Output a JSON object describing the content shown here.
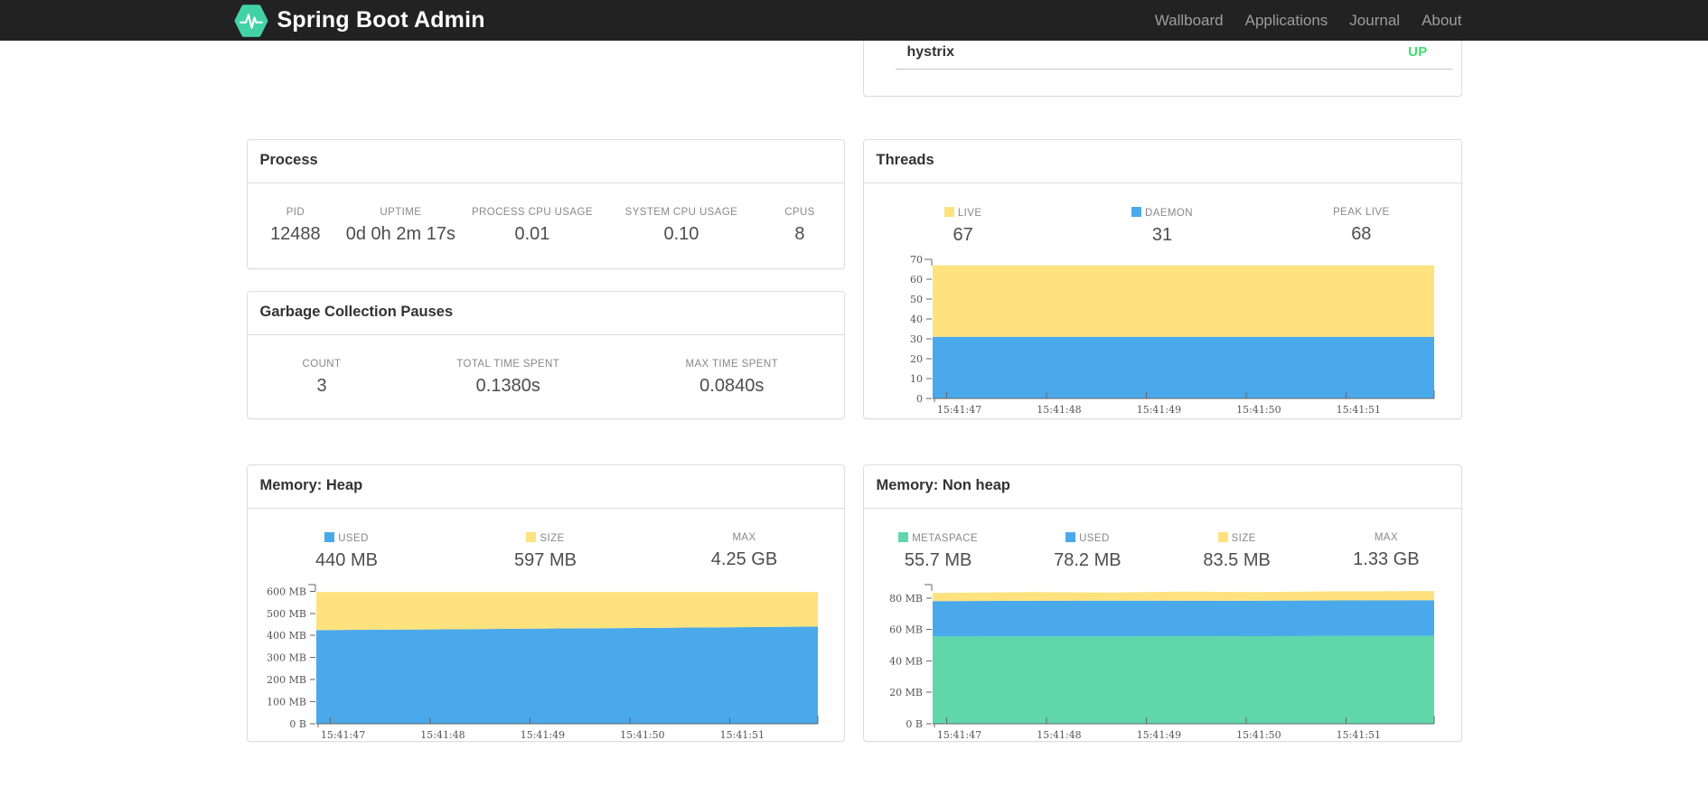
{
  "navbar": {
    "brand": "Spring Boot Admin",
    "logo_color": "#42d3a5",
    "background": "#222222",
    "links": [
      {
        "label": "Wallboard"
      },
      {
        "label": "Applications"
      },
      {
        "label": "Journal"
      },
      {
        "label": "About"
      }
    ]
  },
  "application_row": {
    "name": "hystrix",
    "status": "UP",
    "status_color": "#3bdf70"
  },
  "cards": {
    "process": {
      "title": "Process",
      "metrics": [
        {
          "label": "PID",
          "value": "12488"
        },
        {
          "label": "UPTIME",
          "value": "0d 0h 2m 17s"
        },
        {
          "label": "PROCESS CPU USAGE",
          "value": "0.01"
        },
        {
          "label": "SYSTEM CPU USAGE",
          "value": "0.10"
        },
        {
          "label": "CPUS",
          "value": "8"
        }
      ]
    },
    "gc": {
      "title": "Garbage Collection Pauses",
      "metrics": [
        {
          "label": "COUNT",
          "value": "3"
        },
        {
          "label": "TOTAL TIME SPENT",
          "value": "0.1380s"
        },
        {
          "label": "MAX TIME SPENT",
          "value": "0.0840s"
        }
      ]
    },
    "threads": {
      "title": "Threads",
      "metrics": [
        {
          "label": "LIVE",
          "value": "67",
          "swatch": "#fde27e"
        },
        {
          "label": "DAEMON",
          "value": "31",
          "swatch": "#4aa9ea"
        },
        {
          "label": "PEAK LIVE",
          "value": "68"
        }
      ]
    },
    "heap": {
      "title": "Memory: Heap",
      "metrics": [
        {
          "label": "USED",
          "value": "440 MB",
          "swatch": "#4aa9ea"
        },
        {
          "label": "SIZE",
          "value": "597 MB",
          "swatch": "#fde27e"
        },
        {
          "label": "MAX",
          "value": "4.25 GB"
        }
      ]
    },
    "nonheap": {
      "title": "Memory: Non heap",
      "metrics": [
        {
          "label": "METASPACE",
          "value": "55.7 MB",
          "swatch": "#5fd7aa"
        },
        {
          "label": "USED",
          "value": "78.2 MB",
          "swatch": "#4aa9ea"
        },
        {
          "label": "SIZE",
          "value": "83.5 MB",
          "swatch": "#fde27e"
        },
        {
          "label": "MAX",
          "value": "1.33 GB"
        }
      ]
    }
  },
  "chart_data": [
    {
      "type": "area",
      "title": "Threads",
      "stacked": true,
      "legend_position": "top",
      "grid": false,
      "x_labels": [
        "15:41:47",
        "15:41:48",
        "15:41:49",
        "15:41:50",
        "15:41:51"
      ],
      "x_tick_pos": [
        0.028,
        0.227,
        0.426,
        0.625,
        0.824
      ],
      "ylim": [
        0,
        70
      ],
      "y_ticks": [
        {
          "v": 0,
          "label": "0"
        },
        {
          "v": 10,
          "label": "10"
        },
        {
          "v": 20,
          "label": "20"
        },
        {
          "v": 30,
          "label": "30"
        },
        {
          "v": 40,
          "label": "40"
        },
        {
          "v": 50,
          "label": "50"
        },
        {
          "v": 60,
          "label": "60"
        },
        {
          "v": 70,
          "label": "70"
        }
      ],
      "series": [
        {
          "name": "DAEMON",
          "color": "#4aa9ea",
          "points": [
            [
              0,
              31
            ],
            [
              1,
              31
            ]
          ]
        },
        {
          "name": "LIVE",
          "color": "#fde27e",
          "points": [
            [
              0,
              67
            ],
            [
              1,
              67
            ]
          ]
        }
      ],
      "note": "series points are cumulative stack tops (DAEMON 31 of LIVE 67 total, PEAK LIVE 68)"
    },
    {
      "type": "area",
      "title": "Memory: Heap",
      "stacked": true,
      "legend_position": "top",
      "grid": false,
      "x_labels": [
        "15:41:47",
        "15:41:48",
        "15:41:49",
        "15:41:50",
        "15:41:51"
      ],
      "x_tick_pos": [
        0.028,
        0.227,
        0.426,
        0.625,
        0.824
      ],
      "ylim": [
        0,
        630
      ],
      "ylabel_unit": "MB",
      "y_ticks": [
        {
          "v": 0,
          "label": "0 B"
        },
        {
          "v": 100,
          "label": "100 MB"
        },
        {
          "v": 200,
          "label": "200 MB"
        },
        {
          "v": 300,
          "label": "300 MB"
        },
        {
          "v": 400,
          "label": "400 MB"
        },
        {
          "v": 500,
          "label": "500 MB"
        },
        {
          "v": 600,
          "label": "600 MB"
        }
      ],
      "series": [
        {
          "name": "USED",
          "color": "#4aa9ea",
          "points": [
            [
              0,
              424
            ],
            [
              0.1,
              426
            ],
            [
              0.22,
              427
            ],
            [
              0.34,
              429
            ],
            [
              0.46,
              431
            ],
            [
              0.58,
              433
            ],
            [
              0.7,
              435
            ],
            [
              0.82,
              437
            ],
            [
              0.92,
              439
            ],
            [
              1,
              440
            ]
          ]
        },
        {
          "name": "SIZE",
          "color": "#fde27e",
          "points": [
            [
              0,
              597
            ],
            [
              1,
              597
            ]
          ]
        }
      ],
      "note": "USED rises ~424->440 MB, SIZE flat 597 MB, MAX 4.25 GB"
    },
    {
      "type": "area",
      "title": "Memory: Non heap",
      "stacked": true,
      "legend_position": "top",
      "grid": false,
      "x_labels": [
        "15:41:47",
        "15:41:48",
        "15:41:49",
        "15:41:50",
        "15:41:51"
      ],
      "x_tick_pos": [
        0.028,
        0.227,
        0.426,
        0.625,
        0.824
      ],
      "ylim": [
        0,
        88.5
      ],
      "y_ticks": [
        {
          "v": 0,
          "label": "0 B"
        },
        {
          "v": 20,
          "label": "20 MB"
        },
        {
          "v": 40,
          "label": "40 MB"
        },
        {
          "v": 60,
          "label": "60 MB"
        },
        {
          "v": 80,
          "label": "80 MB"
        }
      ],
      "series": [
        {
          "name": "METASPACE",
          "color": "#5fd7aa",
          "points": [
            [
              0,
              55.5
            ],
            [
              1,
              55.9
            ]
          ]
        },
        {
          "name": "USED",
          "color": "#4aa9ea",
          "points": [
            [
              0,
              78.0
            ],
            [
              0.3,
              78.3
            ],
            [
              0.6,
              78.2
            ],
            [
              1,
              78.6
            ]
          ]
        },
        {
          "name": "SIZE",
          "color": "#fde27e",
          "points": [
            [
              0,
              83.2
            ],
            [
              0.2,
              83.8
            ],
            [
              0.35,
              83.5
            ],
            [
              0.5,
              84.0
            ],
            [
              0.65,
              83.8
            ],
            [
              0.8,
              84.2
            ],
            [
              1,
              84.4
            ]
          ]
        }
      ],
      "note": "cumulative tops: METASPACE 55.7 MB, USED 78.2 MB, SIZE 83.5 MB, MAX 1.33 GB"
    }
  ]
}
